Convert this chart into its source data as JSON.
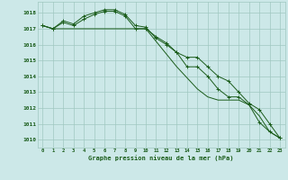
{
  "title": "Graphe pression niveau de la mer (hPa)",
  "background_color": "#cce8e8",
  "grid_color": "#a0c8c0",
  "line_color": "#1a5c1a",
  "x_labels": [
    "0",
    "1",
    "2",
    "3",
    "4",
    "5",
    "6",
    "7",
    "8",
    "9",
    "10",
    "11",
    "12",
    "13",
    "14",
    "15",
    "16",
    "17",
    "18",
    "19",
    "20",
    "21",
    "22",
    "23"
  ],
  "y_ticks": [
    1010,
    1011,
    1012,
    1013,
    1014,
    1015,
    1016,
    1017,
    1018
  ],
  "ylim": [
    1009.5,
    1018.7
  ],
  "xlim": [
    -0.5,
    23.5
  ],
  "series1": [
    1017.2,
    1017.0,
    1017.5,
    1017.3,
    1017.8,
    1018.0,
    1018.2,
    1018.2,
    1017.9,
    1017.2,
    1017.1,
    1016.4,
    1016.0,
    1015.5,
    1014.6,
    1014.6,
    1014.0,
    1013.2,
    1012.7,
    1012.7,
    1012.2,
    1011.1,
    1010.5,
    1010.1
  ],
  "series2": [
    1017.2,
    1017.0,
    1017.4,
    1017.2,
    1017.6,
    1017.9,
    1018.1,
    1018.1,
    1017.8,
    1017.0,
    1017.0,
    1016.5,
    1016.1,
    1015.5,
    1015.2,
    1015.2,
    1014.6,
    1014.0,
    1013.7,
    1013.0,
    1012.3,
    1011.9,
    1011.0,
    1010.1
  ],
  "series3": [
    1017.2,
    1017.0,
    1017.0,
    1017.0,
    1017.0,
    1017.0,
    1017.0,
    1017.0,
    1017.0,
    1017.0,
    1017.0,
    1016.2,
    1015.4,
    1014.6,
    1013.9,
    1013.2,
    1012.7,
    1012.5,
    1012.5,
    1012.5,
    1012.2,
    1011.5,
    1010.5,
    1010.1
  ]
}
